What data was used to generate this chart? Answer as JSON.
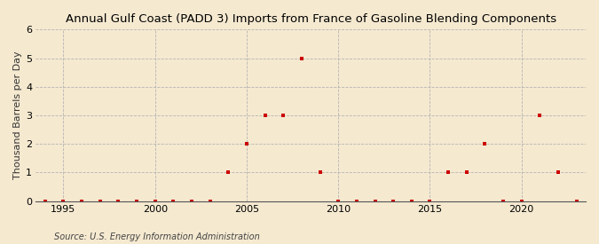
{
  "title": "Annual Gulf Coast (PADD 3) Imports from France of Gasoline Blending Components",
  "ylabel": "Thousand Barrels per Day",
  "source": "Source: U.S. Energy Information Administration",
  "background_color": "#f5e9d0",
  "marker_color": "#cc0000",
  "grid_color": "#b0b0b0",
  "xlim": [
    1993.5,
    2023.5
  ],
  "ylim": [
    0,
    6
  ],
  "yticks": [
    0,
    1,
    2,
    3,
    4,
    5,
    6
  ],
  "xticks": [
    1995,
    2000,
    2005,
    2010,
    2015,
    2020
  ],
  "years": [
    1994,
    1995,
    1996,
    1997,
    1998,
    1999,
    2000,
    2001,
    2002,
    2003,
    2004,
    2005,
    2006,
    2007,
    2008,
    2009,
    2010,
    2011,
    2012,
    2013,
    2014,
    2015,
    2016,
    2017,
    2018,
    2019,
    2020,
    2021,
    2022,
    2023
  ],
  "values": [
    0,
    0,
    0,
    0,
    0,
    0,
    0,
    0,
    0,
    0,
    1,
    2,
    3,
    3,
    5,
    1,
    0,
    0,
    0,
    0,
    0,
    0,
    1,
    1,
    2,
    0,
    0,
    3,
    1,
    0
  ]
}
